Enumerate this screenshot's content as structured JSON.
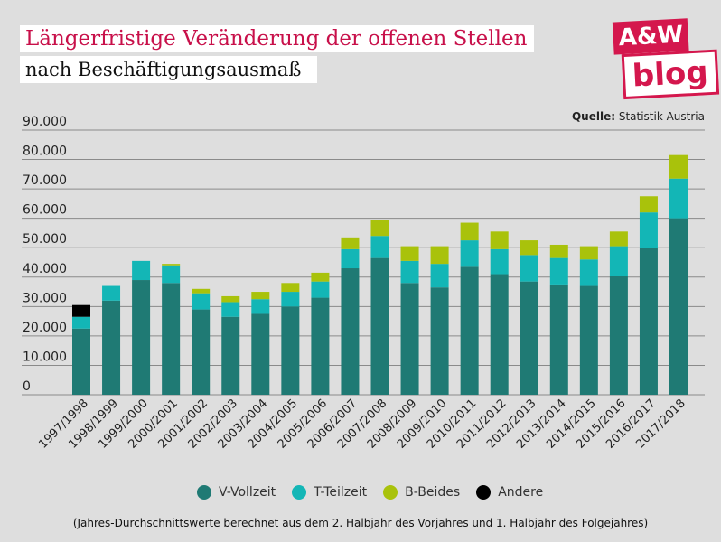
{
  "header": {
    "title": "Längerfristige Veränderung der offenen Stellen",
    "subtitle": "nach Beschäftigungsausmaß"
  },
  "logo": {
    "line1": "A&W",
    "line2": "blog"
  },
  "source": {
    "label": "Quelle:",
    "text": "Statistik Austria"
  },
  "footnote": "(Jahres-Durchschnittswerte berechnet aus dem 2. Halbjahr des Vorjahres und 1. Halbjahr des Folgejahres)",
  "colors": {
    "vollzeit": "#1f7a74",
    "teilzeit": "#13b6b6",
    "beides": "#a9c20b",
    "andere": "#000000",
    "grid": "#8a8a8a"
  },
  "chart_data": {
    "type": "bar",
    "stacked": true,
    "title": "Längerfristige Veränderung der offenen Stellen",
    "subtitle": "nach Beschäftigungsausmaß",
    "xlabel": "",
    "ylabel": "",
    "ylim": [
      0,
      90000
    ],
    "yticks": [
      0,
      10000,
      20000,
      30000,
      40000,
      50000,
      60000,
      70000,
      80000,
      90000
    ],
    "ytick_labels": [
      "0",
      "10.000",
      "20.000",
      "30.000",
      "40.000",
      "50.000",
      "60.000",
      "70.000",
      "80.000",
      "90.000"
    ],
    "legend_position": "bottom",
    "categories": [
      "1997/1998",
      "1998/1999",
      "1999/2000",
      "2000/2001",
      "2001/2002",
      "2002/2003",
      "2003/2004",
      "2004/2005",
      "2005/2006",
      "2006/2007",
      "2007/2008",
      "2008/2009",
      "2009/2010",
      "2010/2011",
      "2011/2012",
      "2012/2013",
      "2013/2014",
      "2014/2015",
      "2015/2016",
      "2016/2017",
      "2017/2018"
    ],
    "series": [
      {
        "name": "V-Vollzeit",
        "color": "#1f7a74",
        "values": [
          22500,
          32000,
          39000,
          38000,
          29000,
          26500,
          27500,
          30000,
          33000,
          43000,
          46500,
          38000,
          36500,
          43500,
          41000,
          38500,
          37500,
          37000,
          40500,
          50000,
          60000
        ]
      },
      {
        "name": "T-Teilzeit",
        "color": "#13b6b6",
        "values": [
          4000,
          5000,
          6500,
          6000,
          5500,
          5000,
          5000,
          5000,
          5500,
          6500,
          7500,
          7500,
          8000,
          9000,
          8500,
          9000,
          9000,
          9000,
          10000,
          12000,
          13500
        ]
      },
      {
        "name": "B-Beides",
        "color": "#a9c20b",
        "values": [
          0,
          0,
          0,
          500,
          1500,
          2000,
          2500,
          3000,
          3000,
          4000,
          5500,
          5000,
          6000,
          6000,
          6000,
          5000,
          4500,
          4500,
          5000,
          5500,
          8000
        ]
      },
      {
        "name": "Andere",
        "color": "#000000",
        "values": [
          4000,
          0,
          0,
          0,
          0,
          0,
          0,
          0,
          0,
          0,
          0,
          0,
          0,
          0,
          0,
          0,
          0,
          0,
          0,
          0,
          0
        ]
      }
    ]
  }
}
